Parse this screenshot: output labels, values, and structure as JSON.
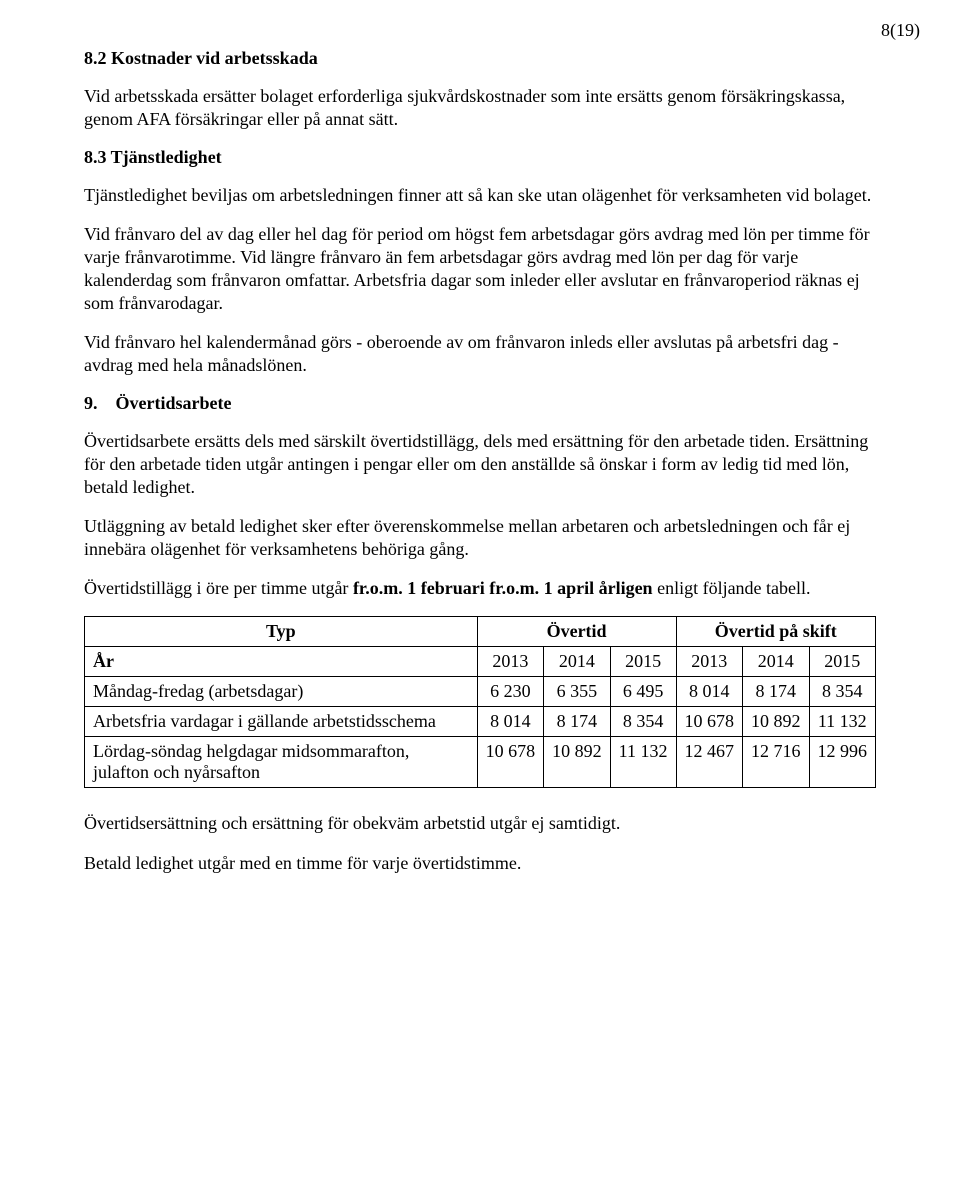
{
  "page_number": "8(19)",
  "s82": {
    "heading": "8.2 Kostnader vid arbetsskada",
    "p1": "Vid arbetsskada ersätter bolaget erforderliga sjukvårdskostnader som inte ersätts genom försäkringskassa, genom AFA försäkringar eller på annat sätt."
  },
  "s83": {
    "heading": "8.3 Tjänstledighet",
    "p1": "Tjänstledighet beviljas om arbetsledningen finner att så kan ske utan olägenhet för verksamheten vid bolaget.",
    "p2": "Vid frånvaro del av dag eller hel dag för period om högst fem arbetsdagar görs avdrag med lön per timme för varje frånvarotimme. Vid längre frånvaro än fem arbetsdagar görs avdrag med lön per dag för varje kalenderdag som frånvaron omfattar. Arbetsfria dagar som inleder eller avslutar en frånvaroperiod räknas ej som frånvarodagar.",
    "p3": "Vid frånvaro hel kalendermånad görs - oberoende av om frånvaron inleds eller avslutas på arbetsfri dag - avdrag med hela månadslönen."
  },
  "s9": {
    "heading": "9. Övertidsarbete",
    "p1": "Övertidsarbete ersätts dels med särskilt övertidstillägg, dels med ersättning för den arbetade tiden. Ersättning för den arbetade tiden utgår antingen i pengar eller om den anställde så önskar i form av ledig tid med lön, betald ledighet.",
    "p2": "Utläggning av betald ledighet sker efter överenskommelse mellan arbetaren och arbetsledningen och får ej innebära olägenhet för verksamhetens behöriga gång.",
    "p3_pre": "Övertidstillägg i öre per timme utgår ",
    "p3_b1": "fr.o.m. 1 februari fr.o.m. 1 april årligen",
    "p3_post": " enligt följande tabell."
  },
  "table": {
    "col_type": "Typ",
    "col_overtime": "Övertid",
    "col_overtime_shift": "Övertid på skift",
    "row_year_label": "År",
    "years_a": [
      "2013",
      "2014",
      "2015"
    ],
    "years_b": [
      "2013",
      "2014",
      "2015"
    ],
    "rows": [
      {
        "label": "Måndag-fredag (arbetsdagar)",
        "a": [
          "6 230",
          "6 355",
          "6 495"
        ],
        "b": [
          "8 014",
          "8 174",
          "8 354"
        ]
      },
      {
        "label": "Arbetsfria vardagar i gällande arbetstidsschema",
        "a": [
          "8 014",
          "8 174",
          "8 354"
        ],
        "b": [
          "10 678",
          "10 892",
          "11 132"
        ]
      },
      {
        "label": "Lördag-söndag helgdagar midsommarafton, julafton och nyårsafton",
        "a": [
          "10 678",
          "10 892",
          "11 132"
        ],
        "b": [
          "12 467",
          "12 716",
          "12 996"
        ]
      }
    ]
  },
  "footer": {
    "p1": "Övertidsersättning och ersättning för obekväm arbetstid utgår ej samtidigt.",
    "p2": "Betald ledighet utgår med en timme för varje övertidstimme."
  }
}
